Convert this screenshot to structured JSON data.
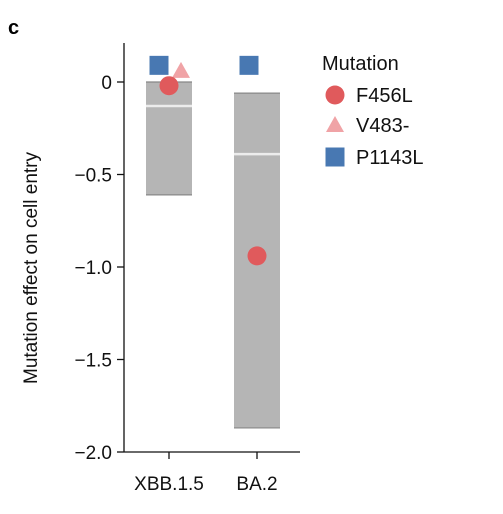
{
  "panel_label": "c",
  "chart_data": {
    "type": "box_with_points",
    "ylabel": "Mutation effect on cell entry",
    "ylim": [
      -2.0,
      0.2
    ],
    "yticks": [
      0,
      -0.5,
      -1.0,
      -1.5,
      -2.0
    ],
    "ytick_labels": [
      "0",
      "−0.5",
      "−1.0",
      "−1.5",
      "−2.0"
    ],
    "categories": [
      "XBB.1.5",
      "BA.2"
    ],
    "distributions": [
      {
        "category": "XBB.1.5",
        "low": -0.61,
        "high": 0.0,
        "median": -0.13
      },
      {
        "category": "BA.2",
        "low": -1.87,
        "high": -0.06,
        "median": -0.39
      }
    ],
    "series": [
      {
        "name": "F456L",
        "marker": "circle",
        "color": "#e05a5c",
        "values": [
          -0.02,
          -0.94
        ]
      },
      {
        "name": "V483-",
        "marker": "triangle",
        "color": "#f0a3a6",
        "values": [
          0.06,
          null
        ]
      },
      {
        "name": "P1143L",
        "marker": "square",
        "color": "#4878b2",
        "values": [
          0.09,
          0.09
        ]
      }
    ],
    "legend": {
      "title": "Mutation",
      "position": "right"
    },
    "colors": {
      "box": "#b5b5b5",
      "median": "#ececec",
      "whisker": "#888888"
    }
  }
}
